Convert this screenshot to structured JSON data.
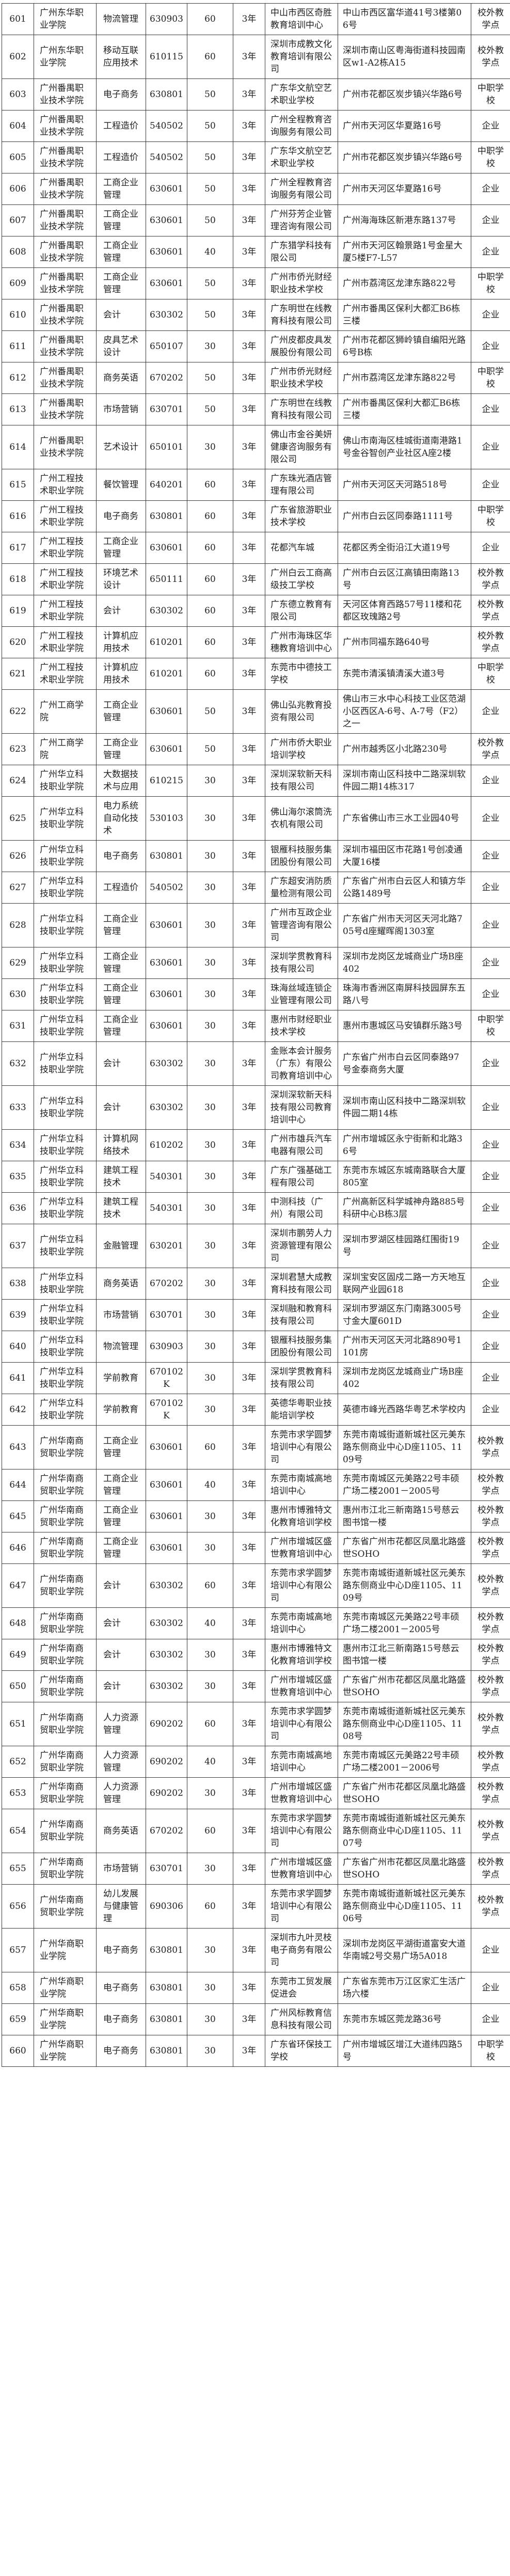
{
  "colors": {
    "border": "#3b3b3b",
    "text": "#1f1f1f",
    "background": "#ffffff"
  },
  "table": {
    "rows": [
      {
        "no": "601",
        "school": "广州东华职业学院",
        "major": "物流管理",
        "code": "630903",
        "quota": "60",
        "duration": "3年",
        "site": "中山市西区奇胜教育培训中心",
        "address": "中山市西区富华道41号3楼第06号",
        "type": "校外教学点"
      },
      {
        "no": "602",
        "school": "广州东华职业学院",
        "major": "移动互联应用技术",
        "code": "610115",
        "quota": "60",
        "duration": "3年",
        "site": "深圳市成教文化教育培训有限公司",
        "address": "深圳市南山区粤海街道科技园南区w1-A2栋A15",
        "type": "校外教学点"
      },
      {
        "no": "603",
        "school": "广州番禺职业技术学院",
        "major": "电子商务",
        "code": "630801",
        "quota": "50",
        "duration": "3年",
        "site": "广东华文航空艺术职业学校",
        "address": "广州市花都区炭步镇兴华路6号",
        "type": "中职学校"
      },
      {
        "no": "604",
        "school": "广州番禺职业技术学院",
        "major": "工程造价",
        "code": "540502",
        "quota": "50",
        "duration": "3年",
        "site": "广州全程教育咨询服务有限公司",
        "address": "广州市天河区华夏路16号",
        "type": "企业"
      },
      {
        "no": "605",
        "school": "广州番禺职业技术学院",
        "major": "工程造价",
        "code": "540502",
        "quota": "50",
        "duration": "3年",
        "site": "广东华文航空艺术职业学校",
        "address": "广州市花都区炭步镇兴华路6号",
        "type": "中职学校"
      },
      {
        "no": "606",
        "school": "广州番禺职业技术学院",
        "major": "工商企业管理",
        "code": "630601",
        "quota": "50",
        "duration": "3年",
        "site": "广州全程教育咨询服务有限公司",
        "address": "广州市天河区华夏路16号",
        "type": "企业"
      },
      {
        "no": "607",
        "school": "广州番禺职业技术学院",
        "major": "工商企业管理",
        "code": "630601",
        "quota": "50",
        "duration": "3年",
        "site": "广州芬芳企业管理咨询有限公司",
        "address": "广州海海珠区新港东路137号",
        "type": "企业"
      },
      {
        "no": "608",
        "school": "广州番禺职业技术学院",
        "major": "工商企业管理",
        "code": "630601",
        "quota": "40",
        "duration": "3年",
        "site": "广东猎学科技有限公司",
        "address": "广州市天河区翰景路1号金星大厦5楼F7-L57",
        "type": "企业"
      },
      {
        "no": "609",
        "school": "广州番禺职业技术学院",
        "major": "工商企业管理",
        "code": "630601",
        "quota": "50",
        "duration": "3年",
        "site": "广州市侨光财经职业技术学校",
        "address": "广州市荔湾区龙津东路822号",
        "type": "中职学校"
      },
      {
        "no": "610",
        "school": "广州番禺职业技术学院",
        "major": "会计",
        "code": "630302",
        "quota": "50",
        "duration": "3年",
        "site": "广东明世在线教育科技有限公司",
        "address": "广州市番禺区保利大都汇B6栋三楼",
        "type": "企业"
      },
      {
        "no": "611",
        "school": "广州番禺职业技术学院",
        "major": "皮具艺术设计",
        "code": "650107",
        "quota": "30",
        "duration": "3年",
        "site": "广州皮都皮具发展股份有限公司",
        "address": "广州市花都区狮岭镇自编阳光路6号B栋",
        "type": "企业"
      },
      {
        "no": "612",
        "school": "广州番禺职业技术学院",
        "major": "商务英语",
        "code": "670202",
        "quota": "50",
        "duration": "3年",
        "site": "广州市侨光财经职业技术学校",
        "address": "广州市荔湾区龙津东路822号",
        "type": "中职学校"
      },
      {
        "no": "613",
        "school": "广州番禺职业技术学院",
        "major": "市场营销",
        "code": "630701",
        "quota": "50",
        "duration": "3年",
        "site": "广东明世在线教育科技有限公司",
        "address": "广州市番禺区保利大都汇B6栋三楼",
        "type": "企业"
      },
      {
        "no": "614",
        "school": "广州番禺职业技术学院",
        "major": "艺术设计",
        "code": "650101",
        "quota": "30",
        "duration": "3年",
        "site": "佛山市金谷美妍健康咨询服务有限公司",
        "address": "佛山市南海区桂城街道南港路1号金谷智创产业社区A座2楼",
        "type": "企业"
      },
      {
        "no": "615",
        "school": "广州工程技术职业学院",
        "major": "餐饮管理",
        "code": "640201",
        "quota": "60",
        "duration": "3年",
        "site": "广东珠光酒店管理有限公司",
        "address": "广州市天河区天河路518号",
        "type": "企业"
      },
      {
        "no": "616",
        "school": "广州工程技术职业学院",
        "major": "电子商务",
        "code": "630801",
        "quota": "60",
        "duration": "3年",
        "site": "广东省旅游职业技术学校",
        "address": "广州市白云区同泰路1111号",
        "type": "中职学校"
      },
      {
        "no": "617",
        "school": "广州工程技术职业学院",
        "major": "工商企业管理",
        "code": "630601",
        "quota": "60",
        "duration": "3年",
        "site": "花都汽车城",
        "address": "花都区秀全街沿江大道19号",
        "type": "企业"
      },
      {
        "no": "618",
        "school": "广州工程技术职业学院",
        "major": "环境艺术设计",
        "code": "650111",
        "quota": "60",
        "duration": "3年",
        "site": "广州白云工商高级技工学校",
        "address": "广州市白云区江高镇田南路13号",
        "type": "校外教学点"
      },
      {
        "no": "619",
        "school": "广州工程技术职业学院",
        "major": "会计",
        "code": "630302",
        "quota": "60",
        "duration": "3年",
        "site": "广东德立教育有限公司",
        "address": "天河区体育西路57号11楼和花都区玫瑰路2号",
        "type": "校外教学点"
      },
      {
        "no": "620",
        "school": "广州工程技术职业学院",
        "major": "计算机应用技术",
        "code": "610201",
        "quota": "60",
        "duration": "3年",
        "site": "广州市海珠区华穗教育培训中心",
        "address": "广州市同福东路640号",
        "type": "校外教学点"
      },
      {
        "no": "621",
        "school": "广州工程技术职业学院",
        "major": "计算机应用技术",
        "code": "610201",
        "quota": "60",
        "duration": "3年",
        "site": "东莞市中德技工学校",
        "address": "东莞市清溪镇清溪大道3号",
        "type": "中职学校"
      },
      {
        "no": "622",
        "school": "广州工商学院",
        "major": "工商企业管理",
        "code": "630601",
        "quota": "50",
        "duration": "3年",
        "site": "佛山弘兆教育投资有限公司",
        "address": "佛山市三水中心科技工业区范湖小区西区A-6号、A-7号（F2）之一",
        "type": "企业"
      },
      {
        "no": "623",
        "school": "广州工商学院",
        "major": "工商企业管理",
        "code": "630601",
        "quota": "50",
        "duration": "3年",
        "site": "广州市侨大职业培训学校",
        "address": "广州市越秀区小北路230号",
        "type": "校外教学点"
      },
      {
        "no": "624",
        "school": "广州华立科技职业学院",
        "major": "大数据技术与应用",
        "code": "610215",
        "quota": "30",
        "duration": "3年",
        "site": "深圳深软新天科技有限公司",
        "address": "深圳市南山区科技中二路深圳软件园二期14栋317",
        "type": "企业"
      },
      {
        "no": "625",
        "school": "广州华立科技职业学院",
        "major": "电力系统自动化技术",
        "code": "530103",
        "quota": "30",
        "duration": "3年",
        "site": "佛山海尔滚筒洗衣机有限公司",
        "address": "广东省佛山市三水工业园40号",
        "type": "企业"
      },
      {
        "no": "626",
        "school": "广州华立科技职业学院",
        "major": "电子商务",
        "code": "630801",
        "quota": "30",
        "duration": "3年",
        "site": "银雁科技服务集团股份有限公司",
        "address": "深圳市福田区市花路1号创凌通大厦16楼",
        "type": "企业"
      },
      {
        "no": "627",
        "school": "广州华立科技职业学院",
        "major": "工程造价",
        "code": "540502",
        "quota": "30",
        "duration": "3年",
        "site": "广东超安消防质量检测有限公司",
        "address": "广东省广州市白云区人和镇方华公路1489号",
        "type": "企业"
      },
      {
        "no": "628",
        "school": "广州华立科技职业学院",
        "major": "工商企业管理",
        "code": "630601",
        "quota": "30",
        "duration": "3年",
        "site": "广州市互政企业管理咨询有限公司",
        "address": "广东省广州市天河区天河北路705号d座耀晖阁1303室",
        "type": "企业"
      },
      {
        "no": "629",
        "school": "广州华立科技职业学院",
        "major": "工商企业管理",
        "code": "630601",
        "quota": "30",
        "duration": "3年",
        "site": "深圳学贯教育科技有限公司",
        "address": "深圳市龙岗区龙城商业广场B座402",
        "type": "企业"
      },
      {
        "no": "630",
        "school": "广州华立科技职业学院",
        "major": "工商企业管理",
        "code": "630601",
        "quota": "30",
        "duration": "3年",
        "site": "珠海丝域连锁企业管理有限公司",
        "address": "珠海市香洲区南屏科技园屏东五路八号",
        "type": "企业"
      },
      {
        "no": "631",
        "school": "广州华立科技职业学院",
        "major": "工商企业管理",
        "code": "630601",
        "quota": "30",
        "duration": "3年",
        "site": "惠州市财经职业技术学校",
        "address": "惠州市惠城区马安镇群乐路3号",
        "type": "中职学校"
      },
      {
        "no": "632",
        "school": "广州华立科技职业学院",
        "major": "会计",
        "code": "630302",
        "quota": "30",
        "duration": "3年",
        "site": "金账本会计服务（广东）有限公司教育培训中心",
        "address": "广东省广州市白云区同泰路97号金泰商务大厦",
        "type": "企业"
      },
      {
        "no": "633",
        "school": "广州华立科技职业学院",
        "major": "会计",
        "code": "630302",
        "quota": "30",
        "duration": "3年",
        "site": "深圳深软新天科技有限公司教育培训中心",
        "address": "深圳市南山区科技中二路深圳软件园二期14栋",
        "type": "企业"
      },
      {
        "no": "634",
        "school": "广州华立科技职业学院",
        "major": "计算机网络技术",
        "code": "610202",
        "quota": "30",
        "duration": "3年",
        "site": "广州市雄兵汽车电器有限公司",
        "address": "广州市增城区永宁街新和北路36号",
        "type": "企业"
      },
      {
        "no": "635",
        "school": "广州华立科技职业学院",
        "major": "建筑工程技术",
        "code": "540301",
        "quota": "30",
        "duration": "3年",
        "site": "广东广强基础工程有限公司",
        "address": "东莞市东城区东城南路联合大厦805室",
        "type": "企业"
      },
      {
        "no": "636",
        "school": "广州华立科技职业学院",
        "major": "建筑工程技术",
        "code": "540301",
        "quota": "30",
        "duration": "3年",
        "site": "中测科技（广州）有限公司",
        "address": "广州高新区科学城神舟路885号科研中心B栋3层",
        "type": "企业"
      },
      {
        "no": "637",
        "school": "广州华立科技职业学院",
        "major": "金融管理",
        "code": "630201",
        "quota": "30",
        "duration": "3年",
        "site": "深圳市鹏劳人力资源管理有限公司",
        "address": "深圳市罗湖区桂园路红围街19号",
        "type": "企业"
      },
      {
        "no": "638",
        "school": "广州华立科技职业学院",
        "major": "商务英语",
        "code": "670202",
        "quota": "30",
        "duration": "3年",
        "site": "深圳君慧大成教育科技有限公司",
        "address": "深圳宝安区固戍二路一方天地互联网产业园618",
        "type": "企业"
      },
      {
        "no": "639",
        "school": "广州华立科技职业学院",
        "major": "市场营销",
        "code": "630701",
        "quota": "30",
        "duration": "3年",
        "site": "深圳融和教育科技有限公司",
        "address": "深圳市罗湖区东门南路3005号寸金大厦601D",
        "type": "企业"
      },
      {
        "no": "640",
        "school": "广州华立科技职业学院",
        "major": "物流管理",
        "code": "630903",
        "quota": "30",
        "duration": "3年",
        "site": "银雁科技服务集团股份有限公司",
        "address": "广州市天河区天河北路890号1101房",
        "type": "企业"
      },
      {
        "no": "641",
        "school": "广州华立科技职业学院",
        "major": "学前教育",
        "code": "670102K",
        "quota": "30",
        "duration": "3年",
        "site": "深圳学贯教育科技有限公司",
        "address": "深圳市龙岗区龙城商业广场B座402",
        "type": "企业"
      },
      {
        "no": "642",
        "school": "广州华立科技职业学院",
        "major": "学前教育",
        "code": "670102K",
        "quota": "30",
        "duration": "3年",
        "site": "英德华粤职业技能培训学校",
        "address": "英德市峰光西路华粤艺术学校内",
        "type": "企业"
      },
      {
        "no": "643",
        "school": "广州华南商贸职业学院",
        "major": "工商企业管理",
        "code": "630601",
        "quota": "60",
        "duration": "3年",
        "site": "东莞市求学圆梦培训中心有限公司",
        "address": "东莞市南城街道新城社区元美东路东侧商业中心D座1105、1109号",
        "type": "校外教学点"
      },
      {
        "no": "644",
        "school": "广州华南商贸职业学院",
        "major": "工商企业管理",
        "code": "630601",
        "quota": "40",
        "duration": "3年",
        "site": "东莞市南城高地培训中心",
        "address": "东莞市南城区元美路22号丰硕广场二楼2001－2005号",
        "type": "校外教学点"
      },
      {
        "no": "645",
        "school": "广州华南商贸职业学院",
        "major": "工商企业管理",
        "code": "630601",
        "quota": "30",
        "duration": "3年",
        "site": "惠州市博雅特文化教育培训学校",
        "address": "惠州市江北三新南路15号慈云图书馆一楼",
        "type": "校外教学点"
      },
      {
        "no": "646",
        "school": "广州华南商贸职业学院",
        "major": "工商企业管理",
        "code": "630601",
        "quota": "30",
        "duration": "3年",
        "site": "广州市增城区盛世教育培训中心",
        "address": "广东省广州市花都区凤凰北路盛世SOHO",
        "type": "校外教学点"
      },
      {
        "no": "647",
        "school": "广州华南商贸职业学院",
        "major": "会计",
        "code": "630302",
        "quota": "60",
        "duration": "3年",
        "site": "东莞市求学圆梦培训中心有限公司",
        "address": "东莞市南城街道新城社区元美东路东侧商业中心D座1105、1109号",
        "type": "校外教学点"
      },
      {
        "no": "648",
        "school": "广州华南商贸职业学院",
        "major": "会计",
        "code": "630302",
        "quota": "40",
        "duration": "3年",
        "site": "东莞市南城高地培训中心",
        "address": "东莞市南城区元美路22号丰硕广场二楼2001－2005号",
        "type": "校外教学点"
      },
      {
        "no": "649",
        "school": "广州华南商贸职业学院",
        "major": "会计",
        "code": "630302",
        "quota": "30",
        "duration": "3年",
        "site": "惠州市博雅特文化教育培训学校",
        "address": "惠州市江北三新南路15号慈云图书馆一楼",
        "type": "校外教学点"
      },
      {
        "no": "650",
        "school": "广州华南商贸职业学院",
        "major": "会计",
        "code": "630302",
        "quota": "30",
        "duration": "3年",
        "site": "广州市增城区盛世教育培训中心",
        "address": "广东省广州市花都区凤凰北路盛世SOHO",
        "type": "校外教学点"
      },
      {
        "no": "651",
        "school": "广州华南商贸职业学院",
        "major": "人力资源管理",
        "code": "690202",
        "quota": "60",
        "duration": "3年",
        "site": "东莞市求学圆梦培训中心有限公司",
        "address": "东莞市南城街道新城社区元美东路东侧商业中心D座1105、1108号",
        "type": "校外教学点"
      },
      {
        "no": "652",
        "school": "广州华南商贸职业学院",
        "major": "人力资源管理",
        "code": "690202",
        "quota": "40",
        "duration": "3年",
        "site": "东莞市南城高地培训中心",
        "address": "东莞市南城区元美路22号丰硕广场二楼2001－2006号",
        "type": "校外教学点"
      },
      {
        "no": "653",
        "school": "广州华南商贸职业学院",
        "major": "人力资源管理",
        "code": "690202",
        "quota": "30",
        "duration": "3年",
        "site": "广州市增城区盛世教育培训中心",
        "address": "广东省广州市花都区凤凰北路盛世SOHO",
        "type": "校外教学点"
      },
      {
        "no": "654",
        "school": "广州华南商贸职业学院",
        "major": "商务英语",
        "code": "670202",
        "quota": "60",
        "duration": "3年",
        "site": "东莞市求学圆梦培训中心有限公司",
        "address": "东莞市南城街道新城社区元美东路东侧商业中心D座1105、1107号",
        "type": "校外教学点"
      },
      {
        "no": "655",
        "school": "广州华南商贸职业学院",
        "major": "市场营销",
        "code": "630701",
        "quota": "30",
        "duration": "3年",
        "site": "广州市增城区盛世教育培训中心",
        "address": "广东省广州市花都区凤凰北路盛世SOHO",
        "type": "校外教学点"
      },
      {
        "no": "656",
        "school": "广州华南商贸职业学院",
        "major": "幼儿发展与健康管理",
        "code": "690306",
        "quota": "60",
        "duration": "3年",
        "site": "东莞市求学圆梦培训中心有限公司",
        "address": "东莞市南城街道新城社区元美东路东侧商业中心D座1105、1106号",
        "type": "校外教学点"
      },
      {
        "no": "657",
        "school": "广州华商职业学院",
        "major": "电子商务",
        "code": "630801",
        "quota": "30",
        "duration": "3年",
        "site": "深圳市九叶灵枝电子商务有限公司",
        "address": "深圳市龙岗区平湖街道富安大道华南城2号交易广场5A018",
        "type": "企业"
      },
      {
        "no": "658",
        "school": "广州华商职业学院",
        "major": "电子商务",
        "code": "630801",
        "quota": "30",
        "duration": "3年",
        "site": "东莞市工贸发展促进会",
        "address": "广东省东莞市万江区家汇生活广场六楼",
        "type": "企业"
      },
      {
        "no": "659",
        "school": "广州华商职业学院",
        "major": "电子商务",
        "code": "630801",
        "quota": "30",
        "duration": "3年",
        "site": "广州风标教育信息科技有限公司",
        "address": "东莞市东城区莞龙路36号",
        "type": "企业"
      },
      {
        "no": "660",
        "school": "广州华商职业学院",
        "major": "电子商务",
        "code": "630801",
        "quota": "30",
        "duration": "3年",
        "site": "广东省环保技工学校",
        "address": "广州市增城区增江大道纬四路5号",
        "type": "中职学校"
      }
    ]
  }
}
